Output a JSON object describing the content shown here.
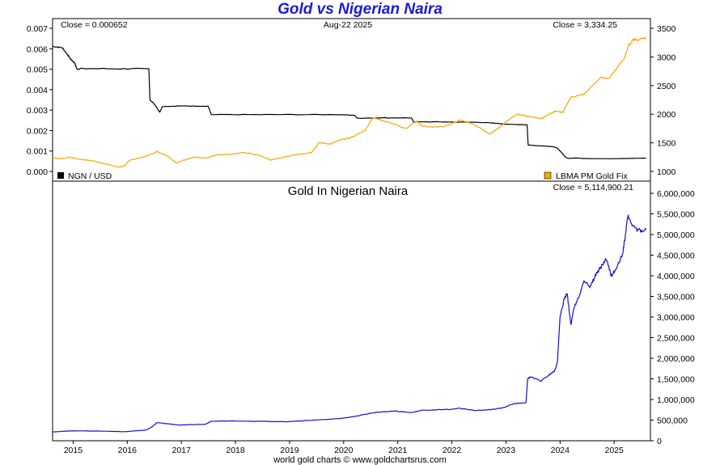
{
  "page": {
    "title": "Gold vs Nigerian Naira",
    "footer": "world gold charts © www.goldchartsrus.com",
    "title_color": "#1a1adc"
  },
  "chart_data": [
    {
      "type": "line",
      "panel": "top",
      "header": {
        "close_left": "Close = 0.000652",
        "date": "Aug-22  2025",
        "close_right": "Close = 3,334.25"
      },
      "y_left": {
        "min": 0,
        "max": 0.007,
        "ticks": [
          "0.000",
          "0.001",
          "0.002",
          "0.003",
          "0.004",
          "0.005",
          "0.006",
          "0.007"
        ]
      },
      "y_right": {
        "min": 1000,
        "max": 3500,
        "ticks": [
          "1000",
          "1500",
          "2000",
          "2500",
          "3000",
          "3500"
        ]
      },
      "grid": false,
      "series": [
        {
          "name": "NGN / USD",
          "axis": "left",
          "color": "#000000",
          "legend_position": "bottom-left",
          "x": [
            2014.67,
            2014.85,
            2014.95,
            2015.0,
            2015.08,
            2015.12,
            2015.2,
            2016.0,
            2016.45,
            2016.47,
            2016.55,
            2016.6,
            2016.65,
            2016.7,
            2017.0,
            2017.3,
            2017.55,
            2017.6,
            2018.0,
            2019.0,
            2020.0,
            2020.25,
            2020.3,
            2020.6,
            2020.7,
            2021.3,
            2021.35,
            2021.4,
            2022.0,
            2022.6,
            2022.9,
            2023.0,
            2023.44,
            2023.46,
            2023.5,
            2023.7,
            2023.9,
            2024.0,
            2024.1,
            2024.15,
            2024.2,
            2024.35,
            2024.5,
            2025.0,
            2025.64
          ],
          "y": [
            0.00612,
            0.00605,
            0.0057,
            0.0055,
            0.0053,
            0.005,
            0.00503,
            0.00502,
            0.00502,
            0.0035,
            0.0033,
            0.0031,
            0.0029,
            0.00318,
            0.0032,
            0.0032,
            0.00318,
            0.00278,
            0.00278,
            0.00278,
            0.00278,
            0.00275,
            0.0026,
            0.00262,
            0.00262,
            0.00262,
            0.0024,
            0.00243,
            0.00242,
            0.0024,
            0.00235,
            0.00232,
            0.00228,
            0.0013,
            0.00128,
            0.00125,
            0.00122,
            0.00115,
            0.00085,
            0.0007,
            0.00064,
            0.00066,
            0.00063,
            0.00062,
            0.000652
          ]
        },
        {
          "name": "LBMA PM Gold Fix",
          "axis": "right",
          "color": "#f5a800",
          "legend_position": "bottom-right",
          "x": [
            2014.67,
            2014.8,
            2015.0,
            2015.1,
            2015.3,
            2015.5,
            2015.7,
            2015.9,
            2016.0,
            2016.1,
            2016.3,
            2016.5,
            2016.6,
            2016.8,
            2016.95,
            2017.1,
            2017.3,
            2017.5,
            2017.7,
            2017.95,
            2018.2,
            2018.5,
            2018.7,
            2018.95,
            2019.2,
            2019.45,
            2019.6,
            2019.8,
            2020.0,
            2020.15,
            2020.25,
            2020.45,
            2020.6,
            2020.7,
            2020.9,
            2021.2,
            2021.4,
            2021.5,
            2021.7,
            2021.95,
            2022.2,
            2022.5,
            2022.75,
            2022.9,
            2023.1,
            2023.25,
            2023.5,
            2023.7,
            2023.8,
            2023.95,
            2024.1,
            2024.25,
            2024.5,
            2024.8,
            2024.95,
            2025.1,
            2025.25,
            2025.32,
            2025.4,
            2025.5,
            2025.64
          ],
          "y": [
            1240,
            1220,
            1250,
            1220,
            1200,
            1170,
            1120,
            1070,
            1100,
            1200,
            1240,
            1300,
            1350,
            1270,
            1150,
            1200,
            1250,
            1230,
            1290,
            1300,
            1330,
            1280,
            1200,
            1250,
            1300,
            1330,
            1500,
            1480,
            1560,
            1580,
            1620,
            1720,
            1950,
            1900,
            1860,
            1750,
            1880,
            1800,
            1770,
            1800,
            1900,
            1800,
            1650,
            1750,
            1900,
            2000,
            1950,
            1920,
            1980,
            2050,
            2030,
            2300,
            2350,
            2650,
            2620,
            2800,
            3000,
            3200,
            3300,
            3300,
            3334
          ]
        }
      ]
    },
    {
      "type": "line",
      "panel": "bottom",
      "title": "Gold In Nigerian Naira",
      "header": {
        "close_right": "Close = 5,114,900.21"
      },
      "y": {
        "min": 0,
        "max": 6000000,
        "ticks": [
          "0",
          "500,000",
          "1,000,000",
          "1,500,000",
          "2,000,000",
          "2,500,000",
          "3,000,000",
          "3,500,000",
          "4,000,000",
          "4,500,000",
          "5,000,000",
          "5,500,000",
          "6,000,000"
        ]
      },
      "x_ticks": [
        "2015",
        "2016",
        "2017",
        "2018",
        "2019",
        "2020",
        "2021",
        "2022",
        "2023",
        "2024",
        "2025"
      ],
      "x_range": [
        2014.67,
        2025.72
      ],
      "grid": false,
      "series": [
        {
          "color": "#1010d0",
          "x": [
            2014.67,
            2015.0,
            2015.5,
            2016.0,
            2016.4,
            2016.5,
            2016.6,
            2016.8,
            2017.0,
            2017.5,
            2017.6,
            2018.0,
            2018.5,
            2019.0,
            2019.5,
            2020.0,
            2020.3,
            2020.6,
            2021.0,
            2021.3,
            2021.5,
            2022.0,
            2022.2,
            2022.5,
            2022.8,
            2023.0,
            2023.2,
            2023.42,
            2023.45,
            2023.5,
            2023.7,
            2023.85,
            2023.95,
            2024.0,
            2024.05,
            2024.12,
            2024.18,
            2024.25,
            2024.3,
            2024.4,
            2024.5,
            2024.6,
            2024.7,
            2024.8,
            2024.9,
            2025.0,
            2025.1,
            2025.2,
            2025.25,
            2025.3,
            2025.4,
            2025.5,
            2025.64
          ],
          "y": [
            210000,
            240000,
            235000,
            220000,
            260000,
            330000,
            440000,
            410000,
            380000,
            400000,
            470000,
            480000,
            470000,
            460000,
            500000,
            540000,
            600000,
            680000,
            720000,
            680000,
            740000,
            760000,
            790000,
            730000,
            760000,
            800000,
            900000,
            920000,
            1500000,
            1550000,
            1450000,
            1600000,
            1700000,
            1900000,
            3000000,
            3400000,
            3600000,
            2800000,
            3200000,
            3500000,
            3900000,
            3700000,
            4000000,
            4200000,
            4400000,
            4000000,
            4200000,
            4500000,
            4900000,
            5450000,
            5200000,
            5100000,
            5115000
          ]
        }
      ]
    }
  ]
}
